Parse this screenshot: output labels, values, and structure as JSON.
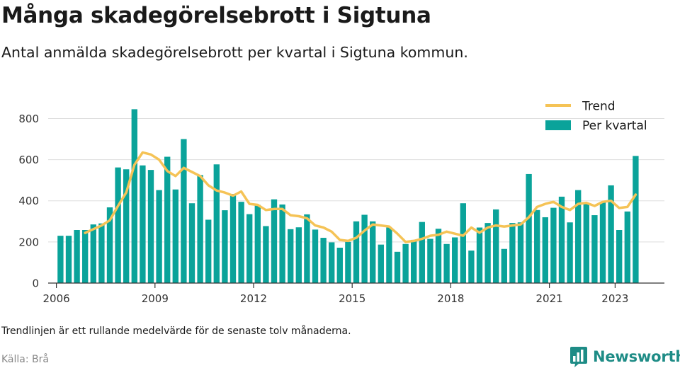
{
  "title": "Många skadegörelsebrott i Sigtuna",
  "subtitle": "Antal anmälda skadegörelsebrott per kvartal i Sigtuna kommun.",
  "note": "Trendlinjen är ett rullande medelvärde för de senaste tolv månaderna.",
  "source": "Källa: Brå",
  "brand": {
    "name": "Newsworthy",
    "logo_icon": "bar-chart-speech-bubble-icon",
    "color": "#1e8c86"
  },
  "colors": {
    "bar": "#0aa39a",
    "trend": "#f5c356",
    "grid": "#dddddd",
    "axis": "#333333"
  },
  "chart_data": {
    "type": "bar",
    "title": "Många skadegörelsebrott i Sigtuna",
    "xlabel": "",
    "ylabel": "",
    "grid": true,
    "legend_placement": "top-right",
    "ylim": [
      0,
      860
    ],
    "xlim": [
      "2005-10",
      "2024-07"
    ],
    "yticks": [
      0,
      200,
      400,
      600,
      800
    ],
    "xticks": [
      "2006",
      "2009",
      "2012",
      "2015",
      "2018",
      "2021",
      "2023"
    ],
    "series": [
      {
        "name": "Per kvartal",
        "kind": "bar",
        "x": [
          "2006-Q1",
          "2006-Q2",
          "2006-Q3",
          "2006-Q4",
          "2007-Q1",
          "2007-Q2",
          "2007-Q3",
          "2007-Q4",
          "2008-Q1",
          "2008-Q2",
          "2008-Q3",
          "2008-Q4",
          "2009-Q1",
          "2009-Q2",
          "2009-Q3",
          "2009-Q4",
          "2010-Q1",
          "2010-Q2",
          "2010-Q3",
          "2010-Q4",
          "2011-Q1",
          "2011-Q2",
          "2011-Q3",
          "2011-Q4",
          "2012-Q1",
          "2012-Q2",
          "2012-Q3",
          "2012-Q4",
          "2013-Q1",
          "2013-Q2",
          "2013-Q3",
          "2013-Q4",
          "2014-Q1",
          "2014-Q2",
          "2014-Q3",
          "2014-Q4",
          "2015-Q1",
          "2015-Q2",
          "2015-Q3",
          "2015-Q4",
          "2016-Q1",
          "2016-Q2",
          "2016-Q3",
          "2016-Q4",
          "2017-Q1",
          "2017-Q2",
          "2017-Q3",
          "2017-Q4",
          "2018-Q1",
          "2018-Q2",
          "2018-Q3",
          "2018-Q4",
          "2019-Q1",
          "2019-Q2",
          "2019-Q3",
          "2019-Q4",
          "2020-Q1",
          "2020-Q2",
          "2020-Q3",
          "2020-Q4",
          "2021-Q1",
          "2021-Q2",
          "2021-Q3",
          "2021-Q4",
          "2022-Q1",
          "2022-Q2",
          "2022-Q3",
          "2022-Q4",
          "2023-Q1",
          "2023-Q2",
          "2023-Q3"
        ],
        "values": [
          230,
          230,
          258,
          258,
          285,
          290,
          368,
          562,
          553,
          845,
          572,
          550,
          452,
          614,
          455,
          700,
          388,
          525,
          308,
          577,
          354,
          433,
          395,
          335,
          380,
          277,
          407,
          382,
          262,
          271,
          334,
          260,
          220,
          198,
          172,
          200,
          300,
          332,
          300,
          187,
          270,
          152,
          190,
          210,
          297,
          215,
          264,
          190,
          222,
          388,
          158,
          270,
          292,
          358,
          166,
          292,
          295,
          530,
          355,
          320,
          366,
          420,
          295,
          452,
          390,
          330,
          395,
          475,
          258,
          348,
          618
        ]
      },
      {
        "name": "Trend",
        "kind": "line",
        "x": [
          "2006-Q4",
          "2007-Q1",
          "2007-Q2",
          "2007-Q3",
          "2007-Q4",
          "2008-Q1",
          "2008-Q2",
          "2008-Q3",
          "2008-Q4",
          "2009-Q1",
          "2009-Q2",
          "2009-Q3",
          "2009-Q4",
          "2010-Q1",
          "2010-Q2",
          "2010-Q3",
          "2010-Q4",
          "2011-Q1",
          "2011-Q2",
          "2011-Q3",
          "2011-Q4",
          "2012-Q1",
          "2012-Q2",
          "2012-Q3",
          "2012-Q4",
          "2013-Q1",
          "2013-Q2",
          "2013-Q3",
          "2013-Q4",
          "2014-Q1",
          "2014-Q2",
          "2014-Q3",
          "2014-Q4",
          "2015-Q1",
          "2015-Q2",
          "2015-Q3",
          "2015-Q4",
          "2016-Q1",
          "2016-Q2",
          "2016-Q3",
          "2016-Q4",
          "2017-Q1",
          "2017-Q2",
          "2017-Q3",
          "2017-Q4",
          "2018-Q1",
          "2018-Q2",
          "2018-Q3",
          "2018-Q4",
          "2019-Q1",
          "2019-Q2",
          "2019-Q3",
          "2019-Q4",
          "2020-Q1",
          "2020-Q2",
          "2020-Q3",
          "2020-Q4",
          "2021-Q1",
          "2021-Q2",
          "2021-Q3",
          "2021-Q4",
          "2022-Q1",
          "2022-Q2",
          "2022-Q3",
          "2022-Q4",
          "2023-Q1",
          "2023-Q2",
          "2023-Q3"
        ],
        "values": [
          244,
          262,
          280,
          305,
          375,
          440,
          575,
          635,
          625,
          600,
          545,
          520,
          560,
          540,
          520,
          475,
          450,
          440,
          425,
          445,
          385,
          380,
          355,
          360,
          360,
          330,
          325,
          315,
          280,
          270,
          250,
          210,
          205,
          220,
          255,
          285,
          280,
          275,
          240,
          200,
          205,
          215,
          230,
          235,
          250,
          240,
          230,
          270,
          245,
          270,
          280,
          275,
          280,
          285,
          320,
          370,
          385,
          395,
          370,
          355,
          385,
          390,
          375,
          395,
          400,
          365,
          370,
          430
        ]
      }
    ]
  }
}
